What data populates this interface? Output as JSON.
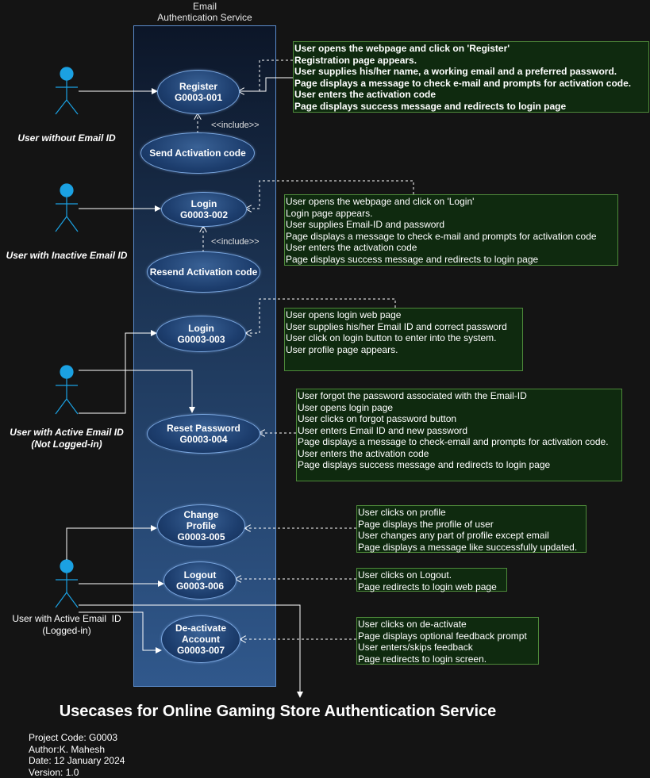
{
  "system": {
    "title_line1": "Email",
    "title_line2": "Authentication Service"
  },
  "actors": [
    {
      "label_lines": [
        "User without Email ID"
      ]
    },
    {
      "label_lines": [
        "User with Inactive Email ID"
      ]
    },
    {
      "label_lines": [
        "User with Active Email ID",
        "(Not Logged-in)"
      ]
    },
    {
      "label_lines": [
        "User with Active Email  ID",
        "(Logged-in)"
      ]
    }
  ],
  "usecases": {
    "register": [
      "Register",
      "G0003-001"
    ],
    "send_activation": [
      "Send Activation code"
    ],
    "login_inactive": [
      "Login",
      "G0003-002"
    ],
    "resend_activation": [
      "Resend Activation code"
    ],
    "login_active": [
      "Login",
      "G0003-003"
    ],
    "reset_password": [
      "Reset Password",
      "G0003-004"
    ],
    "change_profile": [
      "Change",
      "Profile",
      "G0003-005"
    ],
    "logout": [
      "Logout",
      "G0003-006"
    ],
    "deactivate": [
      "De-activate",
      "Account",
      "G0003-007"
    ]
  },
  "include_label": "<<include>>",
  "notes": {
    "register": [
      "User opens the webpage and click on 'Register'",
      "Registration page appears.",
      "User supplies his/her name, a working email and a preferred password.",
      "Page displays a message to check e-mail and prompts for activation code.",
      "User enters the activation code",
      "Page displays success message and redirects to login page"
    ],
    "login_inactive": [
      "User opens the webpage and click on 'Login'",
      "Login page appears.",
      "User supplies Email-ID and password",
      "Page displays a message to check e-mail and prompts for activation code",
      "User enters the activation code",
      "Page displays success message and redirects to login page"
    ],
    "login_active": [
      "User opens login web page",
      "User supplies his/her Email ID and correct password",
      "User click on login button to enter into the system.",
      "User profile page appears."
    ],
    "reset_password": [
      "User forgot the password associated with the Email-ID",
      "User opens login page",
      "User clicks on forgot password button",
      "User enters Email ID and new password",
      "Page displays a message to check-email and prompts for activation code.",
      "User enters the activation code",
      "Page displays success message and redirects to login page"
    ],
    "change_profile": [
      "User clicks on profile",
      "Page displays the profile of user",
      "User changes any part of profile except email",
      "Page displays a message like successfully updated."
    ],
    "logout": [
      "User clicks on Logout.",
      "Page redirects to login web page"
    ],
    "deactivate": [
      "User clicks on de-activate",
      "Page displays optional feedback prompt",
      "User enters/skips feedback",
      "Page redirects to login screen."
    ]
  },
  "title": "Usecases for Online Gaming Store Authentication Service",
  "meta": {
    "project_code": "Project Code: G0003",
    "author": "Author:K. Mahesh",
    "date": "Date: 12 January 2024",
    "version": "Version: 1.0"
  },
  "colors": {
    "background": "#141414",
    "actor": "#1ba1e2",
    "note_fill": "#0f2a0f",
    "note_border": "#4e8a3a",
    "usecase_fill": "#1d3e6e"
  }
}
